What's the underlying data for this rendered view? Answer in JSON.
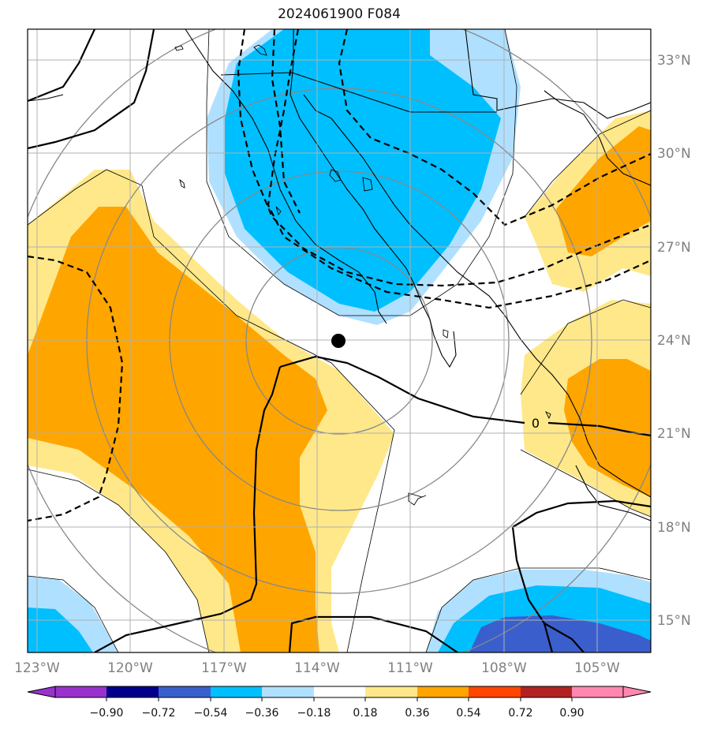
{
  "title": "2024061900 F084",
  "lon_labels": [
    "123°W",
    "120°W",
    "117°W",
    "114°W",
    "111°W",
    "108°W",
    "105°W"
  ],
  "lat_labels": [
    "33°N",
    "30°N",
    "27°N",
    "24°N",
    "21°N",
    "18°N",
    "15°N"
  ],
  "contour_label": "0",
  "colorbar": {
    "ticks": [
      "−0.90",
      "−0.72",
      "−0.54",
      "−0.36",
      "−0.18",
      "0.18",
      "0.36",
      "0.54",
      "0.72",
      "0.90"
    ],
    "colors": [
      "#9932CC",
      "#00008B",
      "#3A5FCD",
      "#00BFFF",
      "#B0E0FF",
      "#FFFFFF",
      "#FFE88A",
      "#FFA500",
      "#FF4500",
      "#B22222",
      "#FF88B0"
    ]
  },
  "fill_colors": {
    "light_blue": "#B0E0FF",
    "blue": "#00BFFF",
    "dark_blue": "#3A5FCD",
    "light_yellow": "#FFE88A",
    "orange": "#FFA500"
  }
}
